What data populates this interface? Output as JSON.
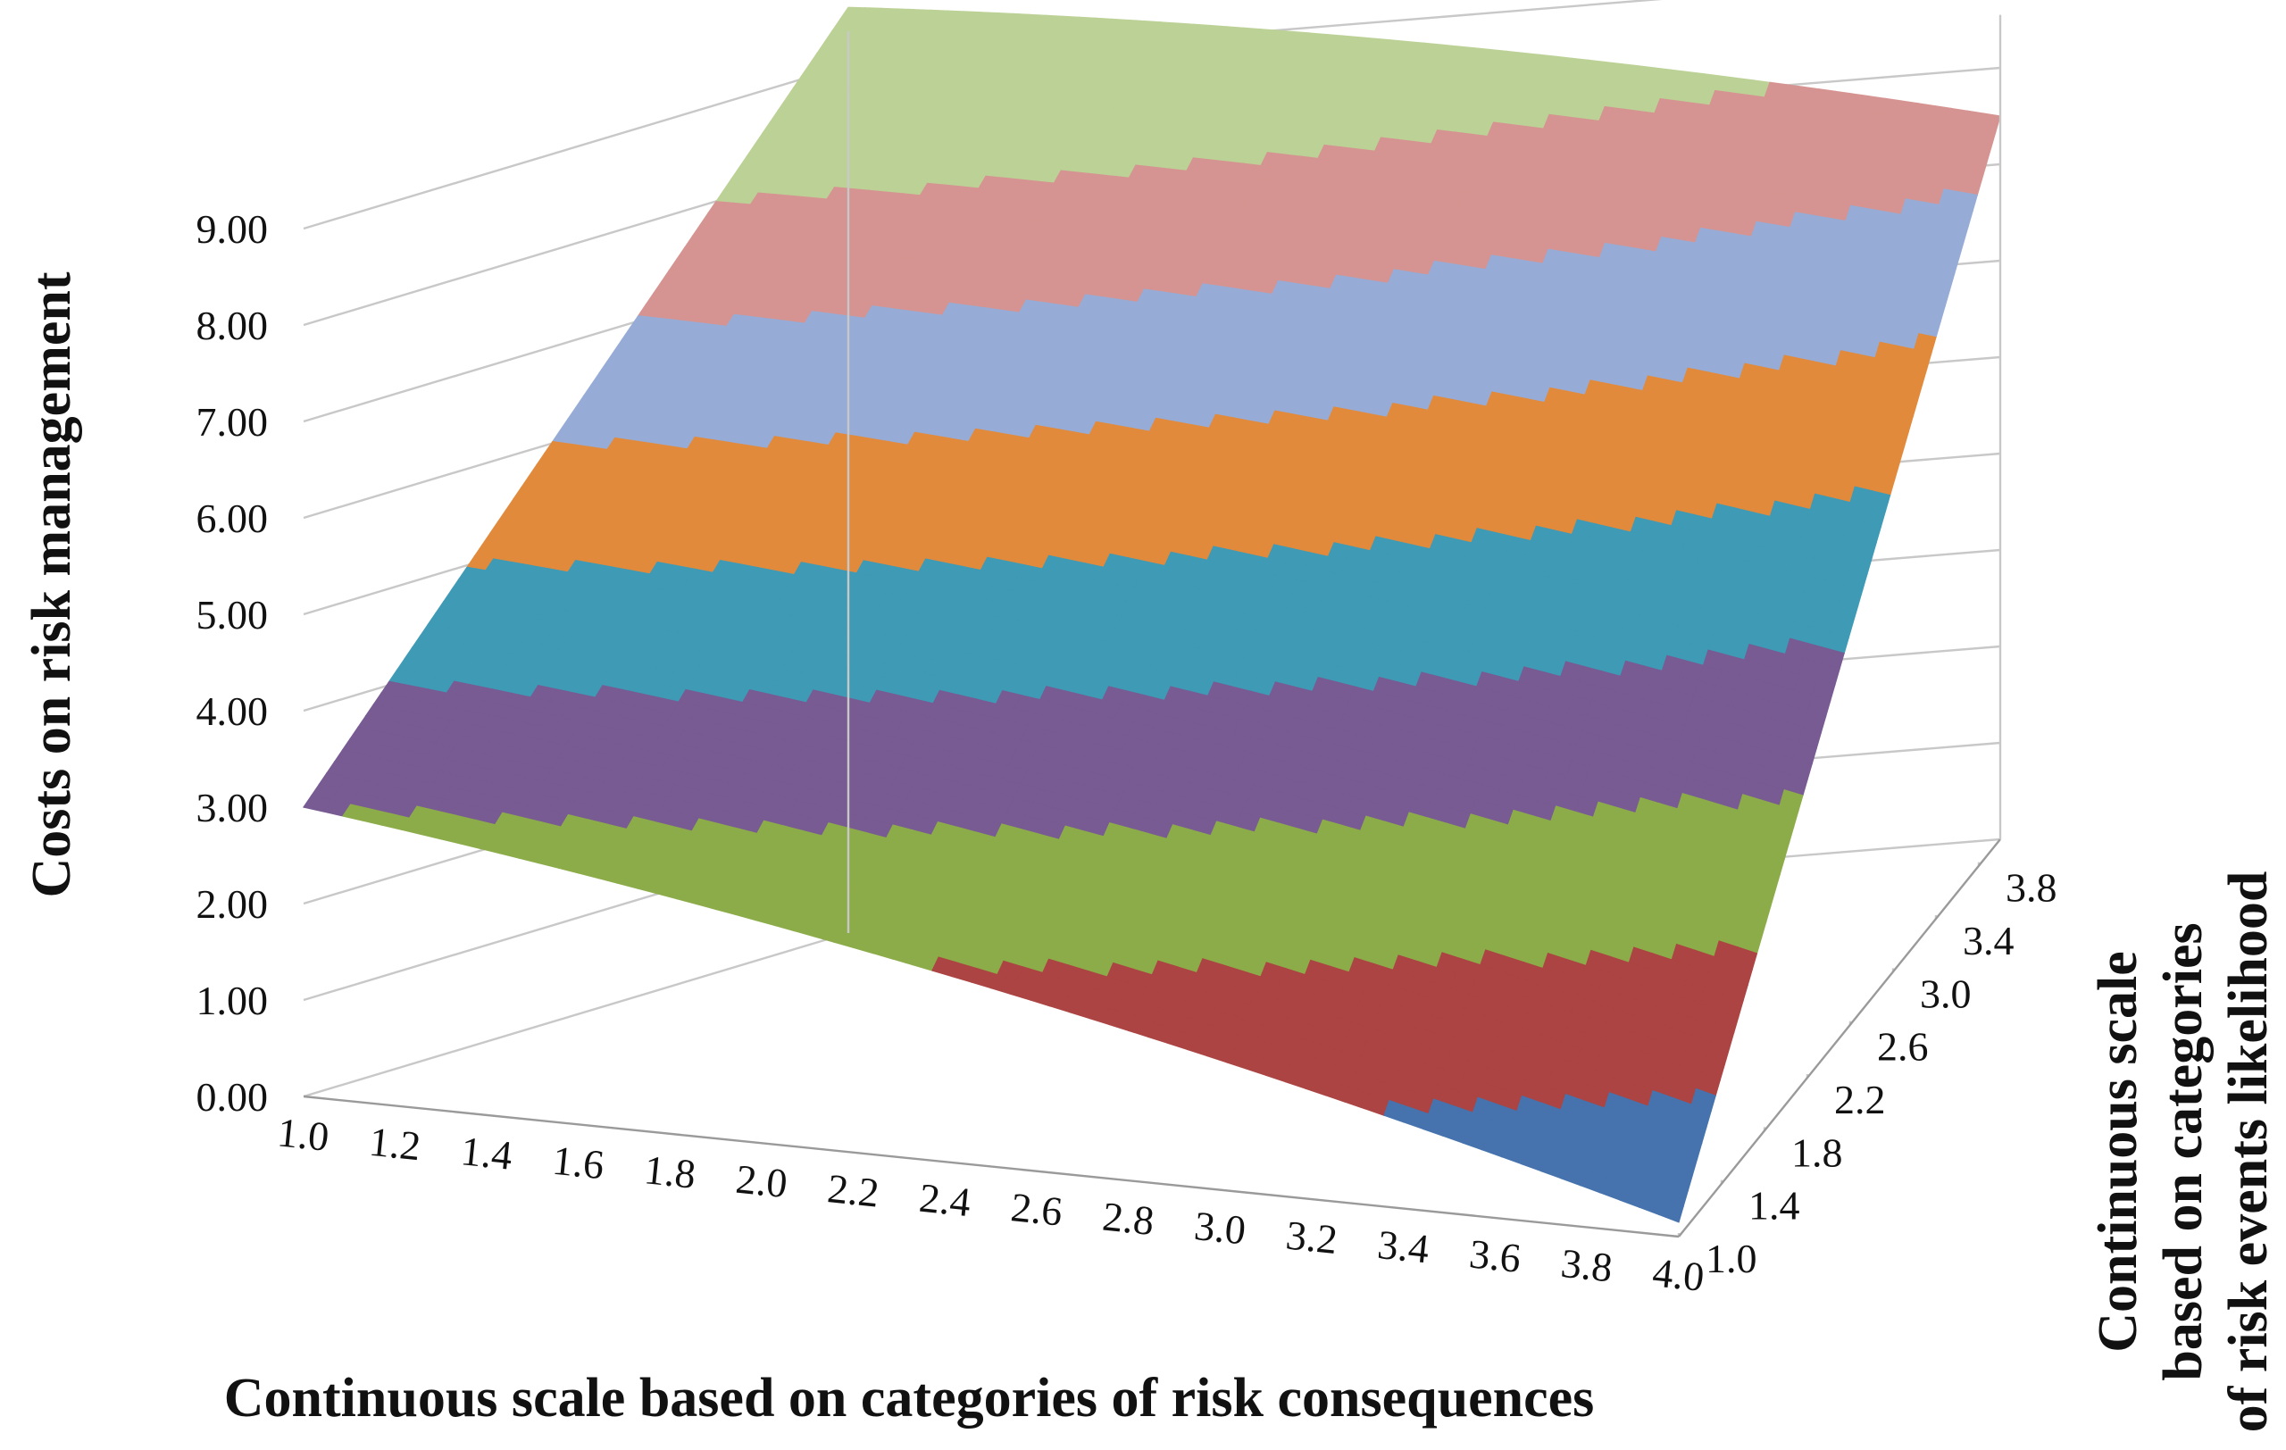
{
  "chart_data": {
    "type": "surface",
    "title": "",
    "zlabel": "Costs on risk management",
    "xlabel": "Continuous scale based on categories of risk consequences",
    "ylabel_lines": [
      "Continuous scale",
      "based on  categories",
      "of risk events likelihood"
    ],
    "zlim": [
      0,
      9
    ],
    "z_ticks": [
      "0.00",
      "1.00",
      "2.00",
      "3.00",
      "4.00",
      "5.00",
      "6.00",
      "7.00",
      "8.00",
      "9.00"
    ],
    "x_ticks": [
      "1.0",
      "1.2",
      "1.4",
      "1.6",
      "1.8",
      "2.0",
      "2.2",
      "2.4",
      "2.6",
      "2.8",
      "3.0",
      "3.2",
      "3.4",
      "3.6",
      "3.8",
      "4.0"
    ],
    "y_ticks": [
      "1.0",
      "1.4",
      "1.8",
      "2.2",
      "2.6",
      "3.0",
      "3.4",
      "3.8"
    ],
    "x_range": [
      1.0,
      4.0
    ],
    "y_range": [
      1.0,
      4.0
    ],
    "corner_values": {
      "x1_y1": 3.0,
      "x4_y1": 0.15,
      "x1_y4": 9.6,
      "x4_y4": 7.5
    },
    "bands": [
      {
        "from": 0,
        "to": 1,
        "color": "#4673ad"
      },
      {
        "from": 1,
        "to": 2,
        "color": "#ab4442"
      },
      {
        "from": 2,
        "to": 3,
        "color": "#8cac4a"
      },
      {
        "from": 3,
        "to": 4,
        "color": "#785b92"
      },
      {
        "from": 4,
        "to": 5,
        "color": "#3e9ab5"
      },
      {
        "from": 5,
        "to": 6,
        "color": "#e28a3c"
      },
      {
        "from": 6,
        "to": 7,
        "color": "#96acd6"
      },
      {
        "from": 7,
        "to": 8,
        "color": "#d59491"
      },
      {
        "from": 8,
        "to": 9,
        "color": "#bcd196"
      }
    ]
  }
}
